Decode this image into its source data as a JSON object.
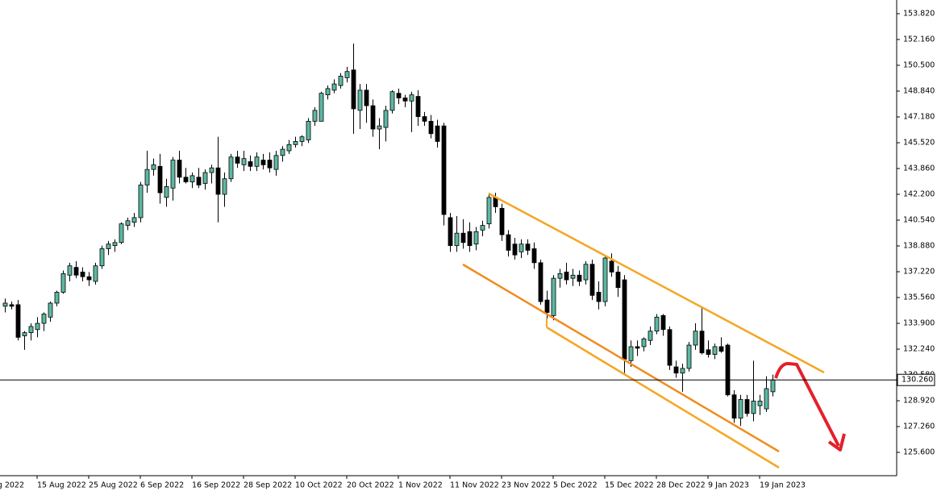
{
  "chart_data": {
    "type": "candlestick",
    "x_label_cut": "g 2022",
    "categories": [
      null,
      null,
      null,
      null,
      null,
      "15 Aug 2022",
      null,
      null,
      null,
      null,
      null,
      null,
      null,
      "25 Aug 2022",
      null,
      null,
      null,
      null,
      null,
      null,
      null,
      "6 Sep 2022",
      null,
      null,
      null,
      null,
      null,
      null,
      null,
      "16 Sep 2022",
      null,
      null,
      null,
      null,
      null,
      null,
      null,
      "28 Sep 2022",
      null,
      null,
      null,
      null,
      null,
      null,
      null,
      "10 Oct 2022",
      null,
      null,
      null,
      null,
      null,
      null,
      null,
      "20 Oct 2022",
      null,
      null,
      null,
      null,
      null,
      null,
      null,
      "1 Nov 2022",
      null,
      null,
      null,
      null,
      null,
      null,
      null,
      "11 Nov 2022",
      null,
      null,
      null,
      null,
      null,
      null,
      null,
      "23 Nov 2022",
      null,
      null,
      null,
      null,
      null,
      null,
      null,
      "5 Dec 2022",
      null,
      null,
      null,
      null,
      null,
      null,
      null,
      "15 Dec 2022",
      null,
      null,
      null,
      null,
      null,
      null,
      null,
      "28 Dec 2022",
      null,
      null,
      null,
      null,
      null,
      null,
      null,
      "9 Jan 2023",
      null,
      null,
      null,
      null,
      null,
      null,
      null,
      "19 Jan 2023",
      null,
      null
    ],
    "open": [
      135.0,
      135.1,
      135.1,
      133.1,
      133.3,
      133.5,
      133.9,
      134.3,
      135.2,
      135.9,
      137.0,
      137.5,
      137.2,
      136.9,
      136.6,
      137.6,
      138.7,
      138.9,
      139.1,
      140.2,
      140.4,
      140.7,
      142.8,
      143.8,
      144.0,
      142.0,
      142.6,
      144.4,
      143.3,
      143.0,
      143.3,
      142.9,
      143.6,
      143.9,
      142.2,
      143.2,
      144.6,
      144.1,
      144.3,
      144.0,
      144.4,
      144.4,
      143.8,
      144.7,
      145.0,
      145.4,
      145.6,
      145.7,
      146.9,
      146.9,
      148.6,
      148.9,
      149.2,
      149.7,
      150.2,
      147.6,
      148.9,
      147.9,
      146.4,
      146.5,
      147.6,
      148.7,
      148.4,
      148.2,
      148.5,
      147.2,
      146.9,
      146.6,
      146.6,
      140.7,
      138.9,
      139.7,
      139.8,
      139.0,
      139.9,
      140.3,
      142.0,
      141.3,
      139.6,
      139.0,
      138.5,
      139.0,
      138.7,
      137.8,
      135.4,
      134.4,
      136.8,
      137.2,
      136.8,
      137.0,
      136.7,
      137.7,
      135.9,
      135.3,
      137.9,
      137.2,
      136.7,
      131.5,
      132.4,
      132.4,
      132.8,
      133.4,
      134.4,
      133.5,
      131.1,
      130.7,
      131.0,
      132.5,
      133.4,
      132.2,
      131.9,
      132.4,
      132.5,
      129.3,
      127.8,
      129.0,
      128.1,
      128.6,
      128.4,
      129.5
    ],
    "high": [
      135.5,
      135.3,
      135.4,
      133.4,
      133.9,
      134.3,
      134.6,
      135.3,
      136.0,
      137.3,
      137.8,
      137.9,
      137.5,
      137.2,
      137.8,
      138.9,
      139.2,
      139.3,
      140.4,
      140.7,
      141.0,
      143.0,
      145.0,
      144.5,
      144.8,
      143.2,
      144.6,
      145.0,
      143.9,
      143.6,
      143.9,
      143.8,
      144.1,
      145.9,
      143.6,
      144.8,
      145.0,
      145.0,
      144.7,
      144.9,
      144.8,
      144.9,
      145.0,
      145.3,
      145.7,
      145.9,
      146.0,
      147.1,
      147.8,
      148.8,
      149.2,
      149.6,
      150.0,
      150.4,
      151.9,
      149.3,
      149.3,
      148.3,
      147.1,
      147.9,
      148.9,
      149.0,
      148.6,
      148.8,
      148.9,
      147.5,
      147.3,
      147.0,
      146.8,
      141.0,
      140.8,
      140.6,
      140.4,
      140.1,
      140.5,
      142.3,
      142.3,
      141.6,
      139.9,
      139.4,
      139.3,
      139.3,
      139.1,
      138.0,
      136.0,
      137.0,
      137.4,
      137.8,
      137.4,
      137.3,
      137.9,
      138.0,
      136.6,
      138.3,
      138.4,
      137.6,
      137.0,
      132.8,
      132.8,
      133.0,
      133.7,
      134.5,
      134.5,
      133.7,
      131.5,
      131.3,
      132.7,
      133.9,
      134.9,
      132.8,
      132.6,
      133.0,
      132.6,
      129.6,
      129.3,
      129.3,
      131.5,
      129.3,
      130.5,
      130.6
    ],
    "low": [
      134.6,
      134.8,
      132.8,
      132.2,
      132.8,
      133.0,
      133.4,
      134.0,
      135.0,
      135.8,
      136.6,
      136.8,
      136.6,
      136.3,
      136.4,
      137.4,
      138.3,
      138.5,
      139.0,
      139.9,
      140.1,
      140.4,
      142.3,
      143.4,
      141.6,
      141.4,
      141.8,
      142.9,
      142.9,
      142.6,
      142.6,
      142.5,
      142.9,
      140.4,
      141.4,
      143.0,
      143.9,
      143.7,
      143.7,
      143.7,
      143.8,
      143.6,
      143.4,
      144.3,
      144.8,
      145.2,
      145.3,
      145.5,
      146.6,
      146.9,
      148.3,
      148.7,
      149.0,
      149.4,
      146.1,
      146.4,
      146.8,
      145.9,
      145.1,
      145.6,
      147.4,
      148.0,
      147.8,
      146.2,
      146.6,
      146.6,
      145.8,
      145.2,
      140.2,
      138.5,
      138.5,
      138.7,
      138.5,
      138.6,
      139.5,
      140.0,
      141.0,
      139.2,
      138.2,
      138.0,
      138.1,
      138.3,
      137.4,
      135.1,
      133.9,
      134.1,
      136.2,
      136.4,
      136.3,
      136.3,
      136.4,
      135.4,
      134.8,
      135.0,
      136.9,
      135.6,
      130.7,
      131.1,
      131.8,
      132.1,
      132.5,
      133.2,
      133.1,
      130.9,
      130.4,
      129.5,
      130.8,
      132.2,
      131.9,
      131.7,
      131.6,
      132.0,
      129.2,
      127.5,
      127.3,
      127.9,
      127.6,
      128.0,
      128.2,
      129.2
    ],
    "close": [
      135.2,
      135.0,
      133.0,
      133.3,
      133.7,
      133.9,
      134.5,
      135.2,
      135.9,
      137.1,
      137.6,
      137.0,
      136.9,
      136.7,
      137.6,
      138.7,
      139.0,
      139.1,
      140.3,
      140.5,
      140.7,
      142.8,
      143.8,
      144.1,
      142.3,
      142.7,
      144.4,
      143.3,
      143.0,
      143.4,
      142.8,
      143.6,
      143.9,
      142.2,
      143.2,
      144.6,
      144.2,
      144.5,
      144.0,
      144.6,
      144.1,
      143.9,
      144.7,
      145.1,
      145.4,
      145.6,
      145.9,
      146.9,
      147.6,
      148.7,
      149.0,
      149.3,
      149.8,
      150.1,
      147.7,
      148.9,
      147.9,
      146.4,
      146.6,
      147.6,
      148.8,
      148.4,
      148.2,
      148.6,
      147.2,
      146.9,
      146.1,
      145.6,
      140.9,
      138.9,
      139.7,
      139.1,
      138.9,
      139.8,
      140.2,
      142.0,
      141.4,
      139.6,
      138.6,
      138.3,
      139.0,
      138.6,
      137.8,
      135.3,
      134.6,
      136.8,
      137.1,
      136.7,
      137.0,
      136.6,
      137.7,
      135.7,
      135.3,
      138.1,
      137.2,
      136.2,
      131.6,
      132.4,
      132.3,
      132.9,
      133.4,
      134.3,
      133.5,
      131.2,
      130.7,
      131.0,
      132.5,
      133.4,
      132.0,
      131.9,
      132.4,
      132.1,
      129.3,
      127.8,
      129.0,
      128.1,
      128.9,
      128.9,
      129.7,
      130.26
    ],
    "up_color": "#5cb8a4",
    "down_color": "#000000",
    "ylim": [
      124.1,
      154.7
    ],
    "yticks": [
      {
        "value": 125.6,
        "label": "125.600"
      },
      {
        "value": 127.26,
        "label": "127.260"
      },
      {
        "value": 128.92,
        "label": "128.920"
      },
      {
        "value": 130.58,
        "label": "130.580"
      },
      {
        "value": 132.24,
        "label": "132.240"
      },
      {
        "value": 133.9,
        "label": "133.900"
      },
      {
        "value": 135.56,
        "label": "135.560"
      },
      {
        "value": 137.22,
        "label": "137.220"
      },
      {
        "value": 138.88,
        "label": "138.880"
      },
      {
        "value": 140.54,
        "label": "140.540"
      },
      {
        "value": 142.2,
        "label": "142.200"
      },
      {
        "value": 143.86,
        "label": "143.860"
      },
      {
        "value": 145.52,
        "label": "145.520"
      },
      {
        "value": 147.18,
        "label": "147.180"
      },
      {
        "value": 148.84,
        "label": "148.840"
      },
      {
        "value": 150.5,
        "label": "150.500"
      },
      {
        "value": 152.16,
        "label": "152.160"
      },
      {
        "value": 153.82,
        "label": "153.820"
      }
    ],
    "bid_line": {
      "value": 130.26,
      "label": "130.260"
    }
  }
}
